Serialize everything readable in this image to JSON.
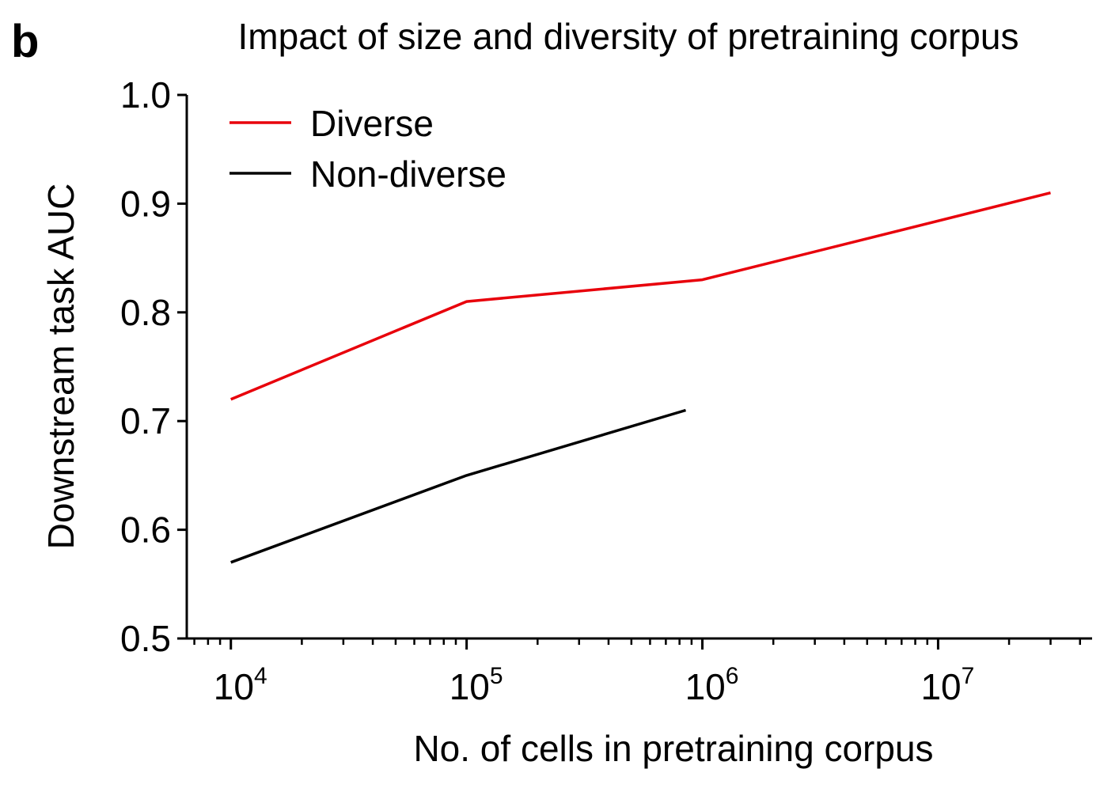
{
  "panel_letter": "b",
  "chart_data": {
    "type": "line",
    "title": "Impact of size and diversity of pretraining corpus",
    "xlabel": "No. of cells in pretraining corpus",
    "ylabel": "Downstream task AUC",
    "xscale": "log",
    "xlim": [
      6500,
      45000000
    ],
    "ylim": [
      0.5,
      1.0
    ],
    "yticks": [
      0.5,
      0.6,
      0.7,
      0.8,
      0.9,
      1.0
    ],
    "ytick_labels": [
      "0.5",
      "0.6",
      "0.7",
      "0.8",
      "0.9",
      "1.0"
    ],
    "xticks": [
      {
        "value": 10000,
        "base": "10",
        "exp": "4"
      },
      {
        "value": 100000,
        "base": "10",
        "exp": "5"
      },
      {
        "value": 1000000,
        "base": "10",
        "exp": "6"
      },
      {
        "value": 10000000,
        "base": "10",
        "exp": "7"
      }
    ],
    "grid": false,
    "legend_position": "top-left",
    "series": [
      {
        "name": "Diverse",
        "color": "#e8000b",
        "x": [
          10000,
          100000,
          1000000,
          30000000
        ],
        "y": [
          0.72,
          0.81,
          0.83,
          0.91
        ]
      },
      {
        "name": "Non-diverse",
        "color": "#000000",
        "x": [
          10000,
          100000,
          850000
        ],
        "y": [
          0.57,
          0.65,
          0.71
        ]
      }
    ]
  }
}
